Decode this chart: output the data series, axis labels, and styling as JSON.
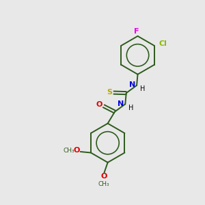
{
  "background_color": "#e8e8e8",
  "bond_color": "#2d5a1b",
  "atom_colors": {
    "F": "#ee00ee",
    "Cl": "#88bb00",
    "N": "#0000dd",
    "O": "#dd0000",
    "S": "#bbaa00",
    "H": "#000000",
    "C": "#2d5a1b"
  },
  "figsize": [
    3.0,
    3.0
  ],
  "dpi": 100
}
